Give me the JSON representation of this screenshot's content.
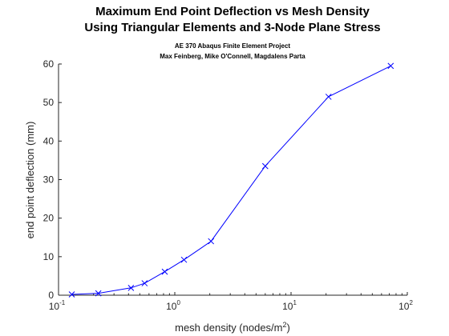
{
  "chart_data": {
    "type": "line",
    "title": [
      "Maximum End Point Deflection vs Mesh Density",
      "Using Triangular Elements and 3-Node Plane Stress"
    ],
    "subtitle": [
      "AE 370 Abaqus Finite Element Project",
      "Max Feinberg, Mike O'Connell, Magdalens Parta"
    ],
    "xlabel": "mesh density (nodes/m",
    "xlabel_sup": "2",
    "xlabel_end": ")",
    "ylabel": "end point deflection (mm)",
    "xscale": "log",
    "xlim": [
      0.1,
      100
    ],
    "ylim": [
      0,
      60
    ],
    "x_ticks": [
      {
        "value": 0.1,
        "base": "10",
        "exp": "-1"
      },
      {
        "value": 1,
        "base": "10",
        "exp": "0"
      },
      {
        "value": 10,
        "base": "10",
        "exp": "1"
      },
      {
        "value": 100,
        "base": "10",
        "exp": "2"
      }
    ],
    "y_ticks": [
      0,
      10,
      20,
      30,
      40,
      50,
      60
    ],
    "grid": false,
    "series": [
      {
        "color": "#0000ff",
        "marker": "x",
        "x": [
          0.13,
          0.22,
          0.42,
          0.55,
          0.82,
          1.2,
          2.05,
          6.0,
          21.0,
          72.0
        ],
        "y": [
          0.2,
          0.5,
          1.9,
          3.1,
          6.1,
          9.2,
          14.0,
          33.5,
          51.5,
          59.5
        ]
      }
    ]
  }
}
